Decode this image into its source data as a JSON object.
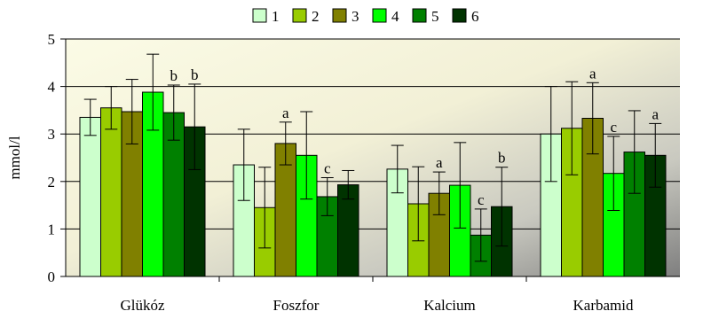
{
  "chart_data": {
    "type": "bar",
    "title": "",
    "xlabel": "",
    "ylabel": "mmol/l",
    "ylim": [
      0,
      5
    ],
    "yticks": [
      0,
      1,
      2,
      3,
      4,
      5
    ],
    "grid": true,
    "legend_position": "top",
    "categories": [
      "Glükóz",
      "Foszfor",
      "Kalcium",
      "Karbamid"
    ],
    "series": [
      {
        "name": "1",
        "color": "#CCFFCC",
        "values": [
          3.35,
          2.35,
          2.26,
          3.0
        ],
        "errors": [
          0.38,
          0.75,
          0.5,
          1.0
        ],
        "labels": [
          "",
          "",
          "",
          ""
        ]
      },
      {
        "name": "2",
        "color": "#99CC00",
        "values": [
          3.55,
          1.45,
          1.53,
          3.12
        ],
        "errors": [
          0.45,
          0.85,
          0.78,
          0.98
        ],
        "labels": [
          "",
          "",
          "",
          ""
        ]
      },
      {
        "name": "3",
        "color": "#808000",
        "values": [
          3.47,
          2.8,
          1.75,
          3.33
        ],
        "errors": [
          0.68,
          0.45,
          0.45,
          0.75
        ],
        "labels": [
          "",
          "a",
          "a",
          "a"
        ]
      },
      {
        "name": "4",
        "color": "#00FF00",
        "values": [
          3.88,
          2.55,
          1.92,
          2.17
        ],
        "errors": [
          0.8,
          0.92,
          0.9,
          0.78
        ],
        "labels": [
          "",
          "",
          "",
          "c"
        ]
      },
      {
        "name": "5",
        "color": "#008000",
        "values": [
          3.45,
          1.68,
          0.87,
          2.62
        ],
        "errors": [
          0.58,
          0.4,
          0.55,
          0.87
        ],
        "labels": [
          "b",
          "c",
          "c",
          ""
        ]
      },
      {
        "name": "6",
        "color": "#003300",
        "values": [
          3.15,
          1.93,
          1.47,
          2.55
        ],
        "errors": [
          0.9,
          0.3,
          0.83,
          0.67
        ],
        "labels": [
          "b",
          "",
          "b",
          "a"
        ]
      }
    ]
  }
}
